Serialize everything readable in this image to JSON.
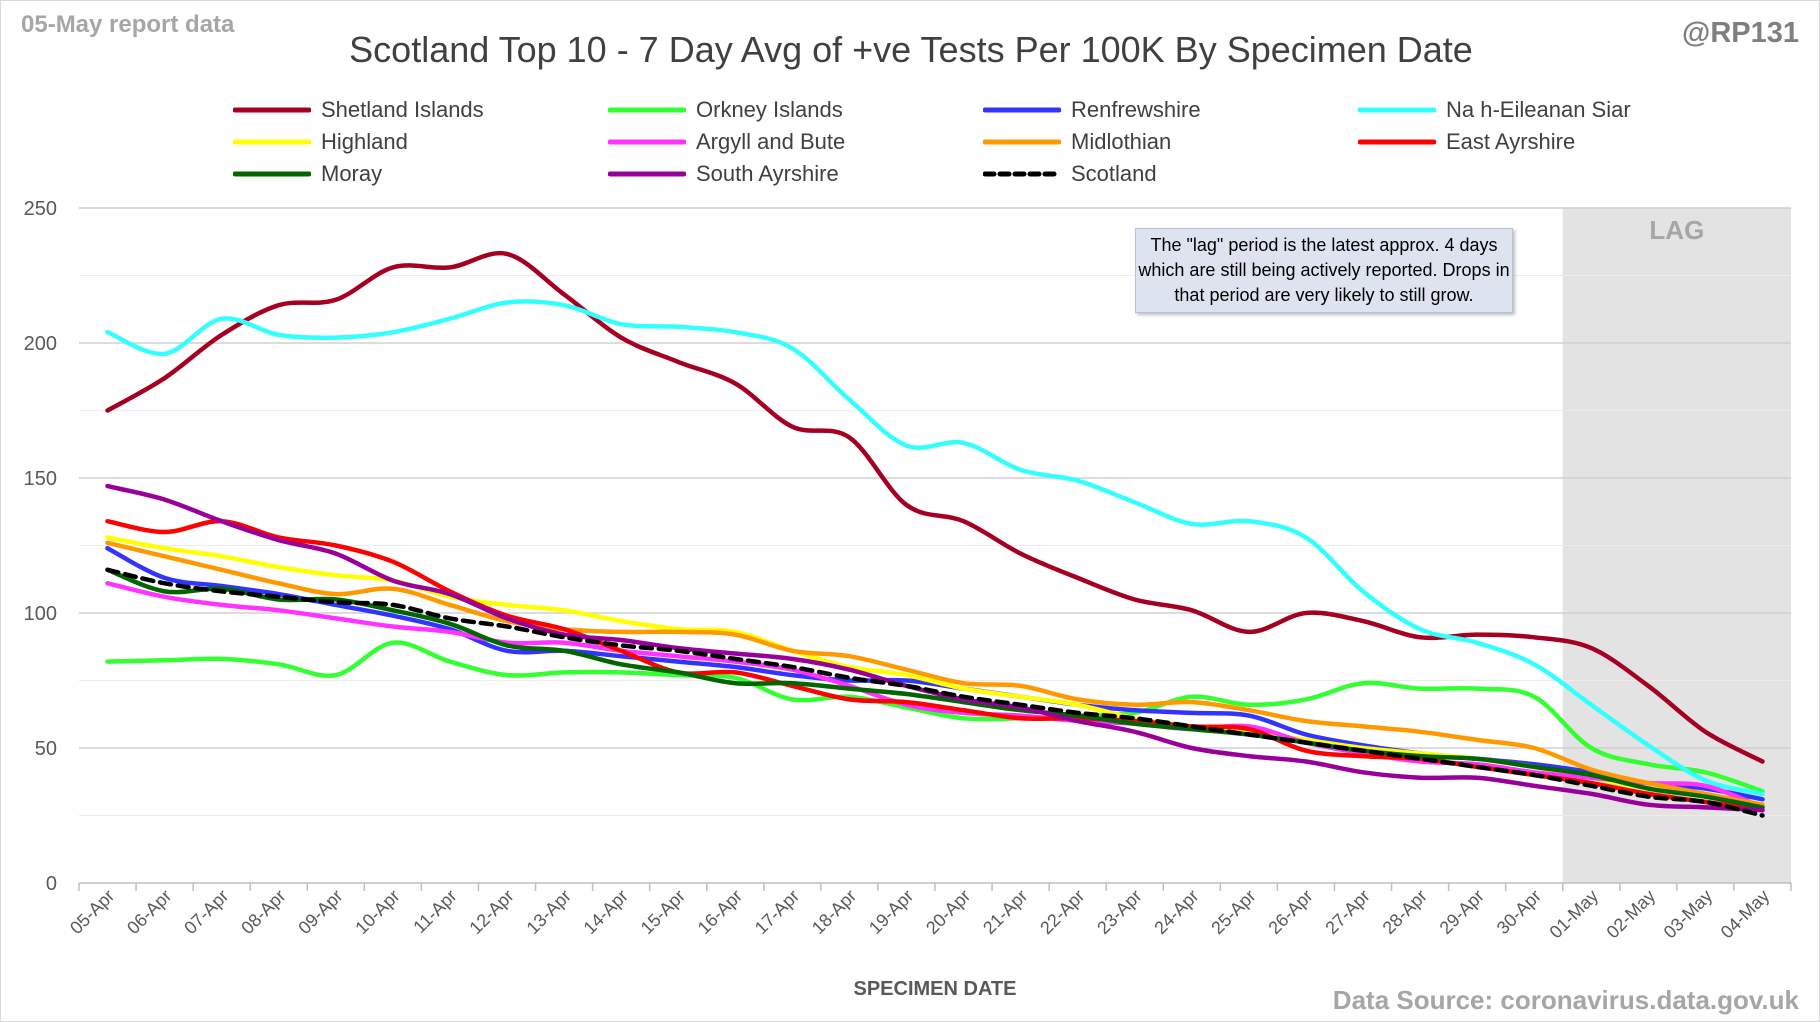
{
  "header": {
    "report_label": "05-May report data",
    "handle": "@RP131",
    "source": "Data Source: coronavirus.data.gov.uk"
  },
  "annotation": {
    "note": "The \"lag\" period is the latest approx. 4 days which are still being actively reported. Drops in that period are very likely to still grow.",
    "lag_label": "LAG",
    "lag_start": "01-May",
    "lag_end": "04-May"
  },
  "colors": {
    "Shetland Islands": "#a50021",
    "Orkney Islands": "#33ff33",
    "Renfrewshire": "#3333ff",
    "Na h-Eileanan Siar": "#33ffff",
    "Highland": "#ffff00",
    "Argyll and Bute": "#ff33ff",
    "Midlothian": "#ff9900",
    "East Ayrshire": "#ff0000",
    "Moray": "#006600",
    "South Ayrshire": "#990099",
    "Scotland": "#000000",
    "lag_shade": "#e3e3e3",
    "gridline": "#d9d9d9"
  },
  "chart_data": {
    "type": "line",
    "title": "Scotland Top 10 - 7 Day Avg of +ve Tests Per 100K By Specimen Date",
    "xlabel": "SPECIMEN DATE",
    "ylabel": "",
    "ylim": [
      0,
      250
    ],
    "yticks": [
      0,
      50,
      100,
      150,
      200,
      250
    ],
    "grid": true,
    "legend_position": "top",
    "categories": [
      "05-Apr",
      "06-Apr",
      "07-Apr",
      "08-Apr",
      "09-Apr",
      "10-Apr",
      "11-Apr",
      "12-Apr",
      "13-Apr",
      "14-Apr",
      "15-Apr",
      "16-Apr",
      "17-Apr",
      "18-Apr",
      "19-Apr",
      "20-Apr",
      "21-Apr",
      "22-Apr",
      "23-Apr",
      "24-Apr",
      "25-Apr",
      "26-Apr",
      "27-Apr",
      "28-Apr",
      "29-Apr",
      "30-Apr",
      "01-May",
      "02-May",
      "03-May",
      "04-May"
    ],
    "series": [
      {
        "name": "Shetland Islands",
        "values": [
          175,
          187,
          203,
          214,
          216,
          228,
          228,
          233,
          218,
          202,
          193,
          185,
          169,
          165,
          140,
          134,
          122,
          113,
          105,
          101,
          93,
          100,
          97,
          91,
          92,
          91,
          87,
          73,
          56,
          45
        ]
      },
      {
        "name": "Orkney Islands",
        "values": [
          82,
          82.5,
          83,
          81,
          77,
          89,
          82,
          77,
          78,
          78,
          77,
          76,
          68,
          69,
          65,
          61,
          61,
          62,
          63,
          69,
          66,
          68,
          74,
          72,
          72,
          69,
          50,
          44,
          41,
          34
        ]
      },
      {
        "name": "Renfrewshire",
        "values": [
          124,
          113,
          110,
          107,
          103,
          99,
          94,
          86,
          86,
          84,
          82,
          80,
          77,
          75,
          75,
          72,
          69,
          66,
          64,
          63,
          62,
          55,
          51,
          48,
          46,
          44,
          41,
          37,
          35,
          31
        ]
      },
      {
        "name": "Na h-Eileanan Siar",
        "values": [
          204,
          196,
          209,
          203,
          202,
          204,
          209,
          215,
          214,
          207,
          206,
          204,
          198,
          179,
          162,
          163,
          153,
          149,
          141,
          133,
          134,
          128,
          108,
          94,
          89,
          81,
          66,
          51,
          38,
          33
        ]
      },
      {
        "name": "Highland",
        "values": [
          128,
          124,
          121,
          117,
          114,
          112,
          106,
          103,
          101,
          97,
          94,
          93,
          86,
          80,
          77,
          72,
          69,
          66,
          61,
          58,
          56,
          53,
          50,
          48,
          46,
          43,
          39,
          35,
          32,
          29
        ]
      },
      {
        "name": "Argyll and Bute",
        "values": [
          111,
          106,
          103,
          101,
          98,
          95,
          93,
          89,
          89,
          86,
          84,
          82,
          79,
          73,
          66,
          63,
          62,
          60,
          59,
          57,
          58,
          52,
          48,
          45,
          44,
          41,
          39,
          37,
          36,
          28
        ]
      },
      {
        "name": "Midlothian",
        "values": [
          126,
          121,
          116,
          111,
          107,
          109,
          103,
          97,
          94,
          93,
          93,
          92,
          86,
          84,
          79,
          74,
          73,
          68,
          66,
          67,
          64,
          60,
          58,
          56,
          53,
          50,
          42,
          37,
          33,
          29
        ]
      },
      {
        "name": "East Ayrshire",
        "values": [
          134,
          130,
          134,
          128,
          125,
          119,
          108,
          99,
          94,
          86,
          78,
          78,
          73,
          68,
          67,
          64,
          61,
          61,
          60,
          58,
          57,
          49,
          47,
          46,
          43,
          40,
          37,
          33,
          30,
          27
        ]
      },
      {
        "name": "Moray",
        "values": [
          116,
          108,
          109,
          105,
          105,
          101,
          96,
          88,
          86,
          81,
          78,
          74,
          74,
          72,
          70,
          67,
          64,
          62,
          59,
          57,
          55,
          52,
          49,
          47,
          46,
          43,
          40,
          35,
          32,
          28
        ]
      },
      {
        "name": "South Ayrshire",
        "values": [
          147,
          142,
          134,
          127,
          122,
          112,
          107,
          98,
          92,
          90,
          87,
          85,
          83,
          79,
          73,
          68,
          65,
          60,
          56,
          50,
          47,
          45,
          41,
          39,
          39,
          36,
          33,
          29,
          28,
          27
        ]
      },
      {
        "name": "Scotland",
        "values": [
          116,
          111,
          108,
          106,
          104,
          103,
          98,
          95,
          91,
          88,
          86,
          83,
          80,
          76,
          73,
          69,
          66,
          63,
          61,
          58,
          55,
          52,
          49,
          46,
          43,
          40,
          36,
          32,
          30,
          25
        ]
      }
    ]
  }
}
